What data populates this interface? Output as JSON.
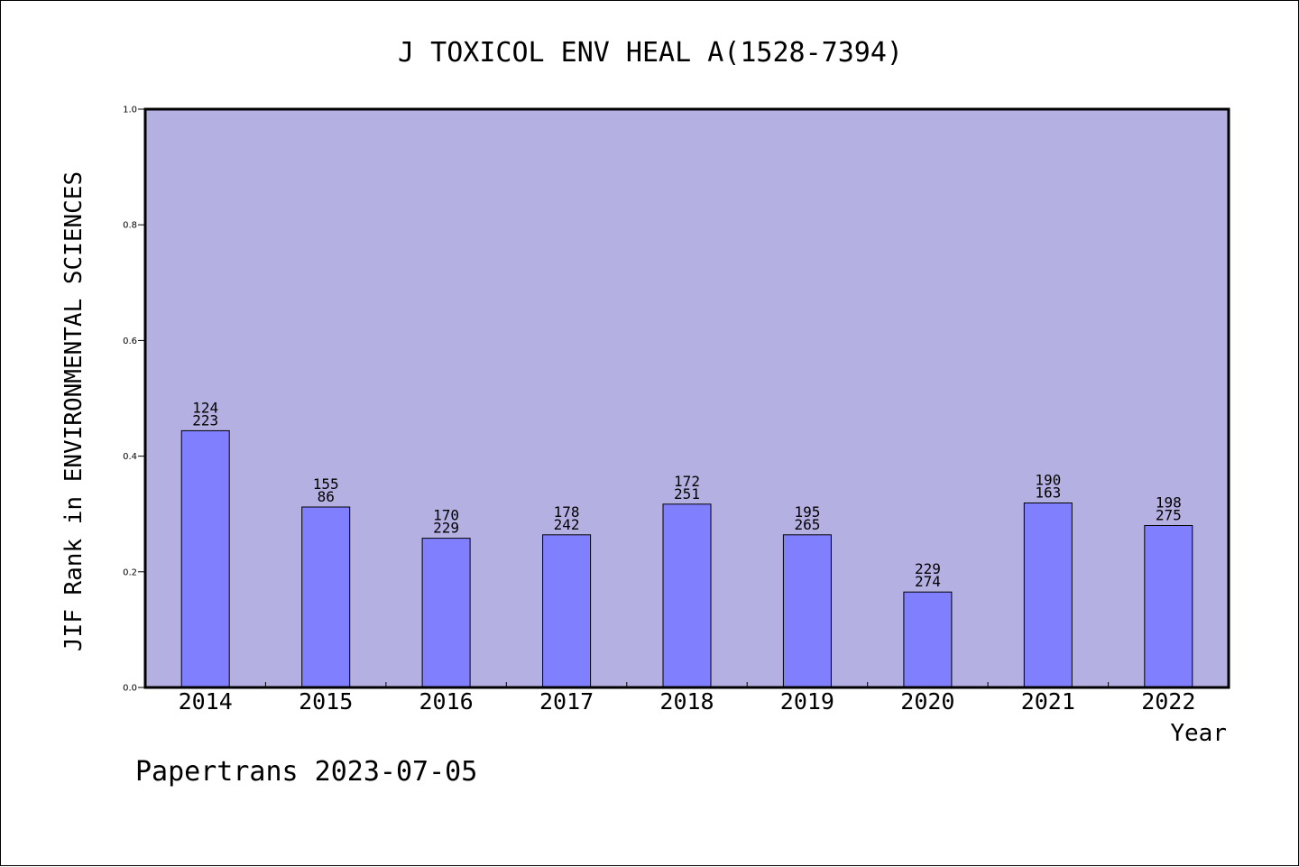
{
  "chart_data": {
    "type": "bar",
    "title": "J TOXICOL ENV HEAL A(1528-7394)",
    "xlabel": "Year",
    "ylabel": "JIF Rank in ENVIRONMENTAL SCIENCES",
    "ylim": [
      0,
      1.0
    ],
    "yticks": [
      "0.0",
      "0.2",
      "0.4",
      "0.6",
      "0.8",
      "1.0"
    ],
    "categories": [
      "2014",
      "2015",
      "2016",
      "2017",
      "2018",
      "2019",
      "2020",
      "2021",
      "2022"
    ],
    "values": [
      0.444,
      0.312,
      0.258,
      0.264,
      0.317,
      0.264,
      0.165,
      0.319,
      0.28
    ],
    "labels_top": [
      "124",
      "155",
      "170",
      "178",
      "172",
      "195",
      "229",
      "190",
      "198"
    ],
    "labels_bottom": [
      "223",
      "86",
      "229",
      "242",
      "251",
      "265",
      "274",
      "163",
      "275"
    ],
    "grid": false,
    "colors": {
      "plot_background": "#b5b0e2",
      "bar_fill": "#8080ff",
      "bar_stroke": "#000000"
    }
  },
  "footer": "Papertrans 2023-07-05"
}
